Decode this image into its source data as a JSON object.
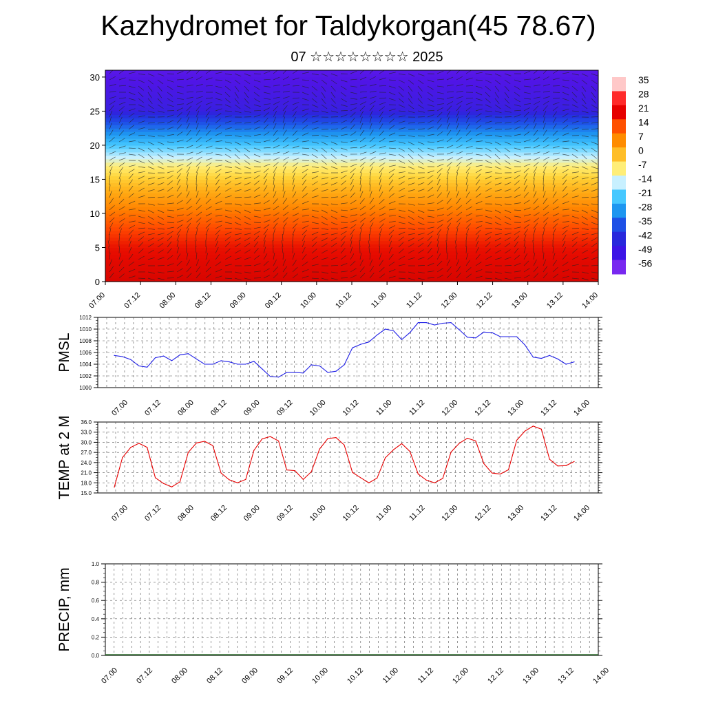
{
  "title": "Kazhydromet for Taldykorgan(45 78.67)",
  "subtitle": "07 ☆☆☆☆☆☆☆☆ 2025",
  "colors": {
    "pmsl_line": "#1e1ee6",
    "temp_line": "#e60000",
    "grid": "#555555"
  },
  "chart_data": [
    {
      "type": "heatmap",
      "name": "temperature-wind-cross-section",
      "xlabel": "",
      "ylabel": "",
      "x_ticklabels": [
        "07.00",
        "07.12",
        "08.00",
        "08.12",
        "09.00",
        "09.12",
        "10.00",
        "10.12",
        "11.00",
        "11.12",
        "12.00",
        "12.12",
        "13.00",
        "13.12",
        "14.00"
      ],
      "y_ticks": [
        0,
        5,
        10,
        15,
        20,
        25,
        30
      ],
      "ylim": [
        0,
        31
      ],
      "colorbar_labels": [
        "35",
        "28",
        "21",
        "14",
        "7",
        "0",
        "-7",
        "-14",
        "-21",
        "-28",
        "-35",
        "-42",
        "-49",
        "-56"
      ],
      "colorbar_colors": [
        "#ffc8c8",
        "#ff2a2a",
        "#e60000",
        "#ff5000",
        "#ff8c00",
        "#ffbe28",
        "#ffee78",
        "#c8f0ff",
        "#46c8ff",
        "#1e96f0",
        "#1e50e6",
        "#2828dc",
        "#3c14e6",
        "#7828f0"
      ],
      "profile": [
        {
          "y": 0,
          "t": 30
        },
        {
          "y": 5,
          "t": 25
        },
        {
          "y": 10,
          "t": 12
        },
        {
          "y": 15,
          "t": -4
        },
        {
          "y": 17,
          "t": -14
        },
        {
          "y": 20,
          "t": -28
        },
        {
          "y": 25,
          "t": -52
        },
        {
          "y": 31,
          "t": -56
        }
      ]
    },
    {
      "type": "line",
      "name": "pmsl",
      "ylabel": "PMSL",
      "ylim": [
        1000,
        1012
      ],
      "y_ticks": [
        1000,
        1002,
        1004,
        1006,
        1008,
        1010,
        1012
      ],
      "x_ticklabels": [
        "07.00",
        "07.12",
        "08.00",
        "08.12",
        "09.00",
        "09.12",
        "10.00",
        "10.12",
        "11.00",
        "11.12",
        "12.00",
        "12.12",
        "13.00",
        "13.12",
        "14.00"
      ],
      "x_step_hours": 3,
      "values": [
        1005.5,
        1005.3,
        1004.8,
        1003.7,
        1003.5,
        1005.1,
        1005.4,
        1004.6,
        1005.6,
        1005.8,
        1004.9,
        1004.0,
        1004.0,
        1004.6,
        1004.4,
        1004.0,
        1004.0,
        1004.5,
        1003.2,
        1001.9,
        1001.8,
        1002.6,
        1002.6,
        1002.5,
        1003.9,
        1003.7,
        1002.6,
        1002.8,
        1003.9,
        1006.8,
        1007.4,
        1007.8,
        1009.0,
        1010.0,
        1009.7,
        1008.2,
        1009.4,
        1011.1,
        1011.1,
        1010.7,
        1011.0,
        1011.1,
        1009.9,
        1008.6,
        1008.5,
        1009.5,
        1009.4,
        1008.7,
        1008.7,
        1008.7,
        1007.3,
        1005.2,
        1005.0,
        1005.5,
        1004.9,
        1004.0,
        1004.4
      ]
    },
    {
      "type": "line",
      "name": "temp-2m",
      "ylabel": "TEMP at 2 M",
      "ylim": [
        15,
        36
      ],
      "y_ticklabels": [
        "15.0",
        "18.0",
        "21.0",
        "24.0",
        "27.0",
        "30.0",
        "33.0",
        "36.0"
      ],
      "y_ticks": [
        15,
        18,
        21,
        24,
        27,
        30,
        33,
        36
      ],
      "x_ticklabels": [
        "07.00",
        "07.12",
        "08.00",
        "08.12",
        "09.00",
        "09.12",
        "10.00",
        "10.12",
        "11.00",
        "11.12",
        "12.00",
        "12.12",
        "13.00",
        "13.12",
        "14.00"
      ],
      "x_step_hours": 3,
      "values": [
        16.7,
        25.5,
        28.5,
        29.7,
        28.5,
        19.5,
        17.8,
        16.8,
        18.3,
        27.0,
        29.8,
        30.3,
        29.0,
        20.9,
        18.9,
        18.0,
        19.0,
        27.6,
        31.0,
        31.7,
        30.4,
        21.8,
        21.6,
        19.0,
        21.3,
        28.0,
        31.1,
        31.4,
        29.2,
        21.1,
        19.5,
        18.0,
        19.4,
        25.4,
        27.8,
        29.6,
        27.3,
        20.6,
        18.8,
        18.0,
        19.3,
        27.1,
        29.7,
        31.2,
        30.4,
        23.7,
        20.9,
        20.6,
        21.9,
        30.6,
        33.3,
        34.8,
        33.9,
        25.0,
        23.0,
        23.1,
        24.3
      ]
    },
    {
      "type": "line",
      "name": "precip",
      "ylabel": "PRECIP, mm",
      "ylim": [
        0,
        1
      ],
      "y_ticklabels": [
        "0.0",
        "0.2",
        "0.4",
        "0.6",
        "0.8",
        "1.0"
      ],
      "y_ticks": [
        0,
        0.2,
        0.4,
        0.6,
        0.8,
        1.0
      ],
      "x_ticklabels": [
        "07.00",
        "07.12",
        "08.00",
        "08.12",
        "09.00",
        "09.12",
        "10.00",
        "10.12",
        "11.00",
        "11.12",
        "12.00",
        "12.12",
        "13.00",
        "13.12",
        "14.00"
      ]
    }
  ]
}
